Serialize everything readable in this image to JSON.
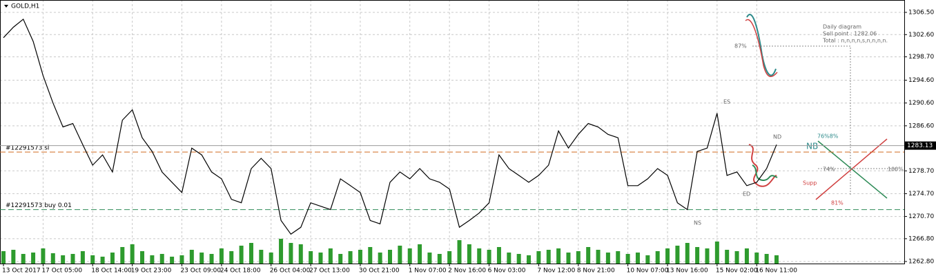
{
  "chart_data": {
    "type": "line",
    "title": "GOLD,H1",
    "color": "#000000",
    "volume_color": "#2e9b2e",
    "ylim": [
      1262.44,
      1308.67
    ],
    "yticks": [
      {
        "value": 1262.8,
        "label": "1262.80"
      },
      {
        "value": 1266.8,
        "label": "1266.80"
      },
      {
        "value": 1270.7,
        "label": "1270.70"
      },
      {
        "value": 1274.7,
        "label": "1274.70"
      },
      {
        "value": 1278.7,
        "label": "1278.70"
      },
      {
        "value": 1286.6,
        "label": "1286.60"
      },
      {
        "value": 1290.6,
        "label": "1290.60"
      },
      {
        "value": 1294.6,
        "label": "1294.60"
      },
      {
        "value": 1298.7,
        "label": "1298.70"
      },
      {
        "value": 1302.6,
        "label": "1302.60"
      },
      {
        "value": 1306.5,
        "label": "1306.50"
      }
    ],
    "grid": true,
    "current_price": 1283.13,
    "categories": [
      "13 Oct 2017",
      null,
      null,
      null,
      "17 Oct 05:00",
      null,
      null,
      null,
      null,
      "18 Oct 14:00",
      null,
      null,
      null,
      "19 Oct 23:00",
      null,
      null,
      null,
      null,
      "23 Oct 09:00",
      null,
      null,
      null,
      "24 Oct 18:00",
      null,
      null,
      null,
      null,
      "26 Oct 04:00",
      null,
      null,
      null,
      "27 Oct 13:00",
      null,
      null,
      null,
      null,
      "30 Oct 21:00",
      null,
      null,
      null,
      null,
      "1 Nov 07:00",
      null,
      null,
      null,
      "2 Nov 16:00",
      null,
      null,
      null,
      "6 Nov 03:00",
      null,
      null,
      null,
      null,
      "7 Nov 12:00",
      null,
      null,
      null,
      "8 Nov 21:00",
      null,
      null,
      null,
      null,
      "10 Nov 07:00",
      null,
      null,
      null,
      "13 Nov 16:00",
      null,
      null,
      null,
      null,
      "15 Nov 02:00",
      null,
      null,
      null,
      "16 Nov 11:00",
      null,
      null
    ],
    "values": [
      1302.05,
      1303.9,
      1305.3,
      1301.4,
      1295.4,
      1290.6,
      1286.4,
      1287.0,
      1283.3,
      1279.7,
      1281.5,
      1278.5,
      1287.6,
      1289.4,
      1284.5,
      1282.1,
      1278.5,
      1276.7,
      1274.9,
      1282.7,
      1281.5,
      1278.5,
      1277.3,
      1273.7,
      1273.1,
      1279.1,
      1280.9,
      1279.1,
      1270.0,
      1267.6,
      1268.8,
      1273.1,
      1272.5,
      1271.9,
      1277.3,
      1276.1,
      1274.9,
      1270.0,
      1269.4,
      1276.7,
      1278.5,
      1277.3,
      1279.1,
      1277.3,
      1276.7,
      1275.5,
      1268.8,
      1270.0,
      1271.3,
      1273.1,
      1281.5,
      1279.1,
      1277.9,
      1276.7,
      1277.9,
      1279.7,
      1285.7,
      1282.7,
      1285.1,
      1287.0,
      1286.4,
      1285.1,
      1284.5,
      1276.1,
      1276.1,
      1277.3,
      1279.1,
      1277.9,
      1273.1,
      1271.9,
      1282.1,
      1282.7,
      1288.8,
      1277.9,
      1278.5,
      1276.1,
      1276.7,
      1279.1,
      1283.3
    ],
    "volumes": [
      18,
      20,
      14,
      16,
      22,
      15,
      12,
      14,
      18,
      12,
      10,
      16,
      24,
      28,
      18,
      12,
      14,
      10,
      12,
      20,
      16,
      14,
      22,
      18,
      26,
      30,
      20,
      16,
      36,
      30,
      28,
      18,
      16,
      22,
      14,
      18,
      20,
      24,
      16,
      20,
      26,
      22,
      28,
      16,
      14,
      18,
      34,
      28,
      22,
      20,
      24,
      16,
      14,
      12,
      18,
      20,
      22,
      16,
      18,
      24,
      20,
      16,
      18,
      14,
      16,
      12,
      18,
      22,
      26,
      30,
      24,
      22,
      32,
      20,
      18,
      22,
      16,
      14,
      12
    ],
    "orders": [
      {
        "label": "#12291573 sl",
        "price": 1282.0,
        "color": "#d2691e"
      },
      {
        "label": "#12291573 buy 0.01",
        "price": 1271.9,
        "color": "#2e8b57"
      }
    ]
  },
  "annotations": {
    "daily": "Daily diagram",
    "sell_point": "Sell point : 1282.06",
    "total": "Total : n,n,n,n,s,n,n,n,n.",
    "p87": "87%",
    "p7678": "76%8%",
    "p74": "74%",
    "p100": "100%",
    "supp": "Supp",
    "p81": "81%",
    "nb": "NB",
    "es": "ES",
    "nd": "ND",
    "ed": "ED",
    "ns": "NS"
  }
}
